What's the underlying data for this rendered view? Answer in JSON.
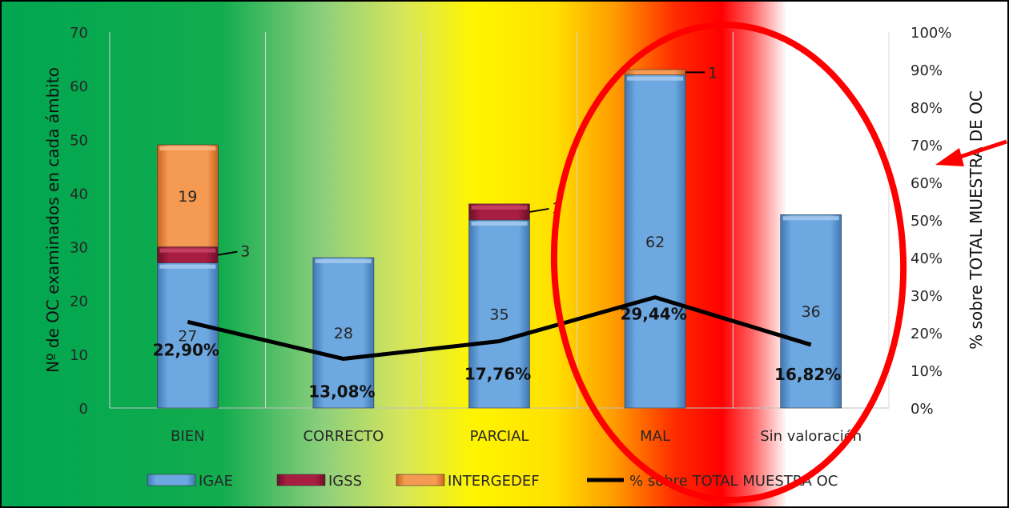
{
  "chart_data": {
    "type": "bar",
    "stacked": true,
    "categories": [
      "BIEN",
      "CORRECTO",
      "PARCIAL",
      "MAL",
      "Sin valoración"
    ],
    "series": [
      {
        "name": "IGAE",
        "values": [
          27,
          28,
          35,
          62,
          36
        ],
        "color": "#5B9BD5"
      },
      {
        "name": "IGSS",
        "values": [
          3,
          0,
          3,
          0,
          0
        ],
        "color": "#9E1C3D"
      },
      {
        "name": "INTERGEDEF",
        "values": [
          19,
          0,
          0,
          1,
          0
        ],
        "color": "#ED7D31"
      }
    ],
    "line_series": {
      "name": "% sobre TOTAL MUESTRA OC",
      "values": [
        22.9,
        13.08,
        17.76,
        29.44,
        16.82
      ],
      "labels": [
        "22,90%",
        "13,08%",
        "17,76%",
        "29,44%",
        "16,82%"
      ],
      "color": "#000000",
      "axis": "right"
    },
    "ylabel": "Nº de OC examinados en cada ámbito",
    "y2label": "% sobre TOTAL MUESTRA DE OC",
    "ylim": [
      0,
      70
    ],
    "y2lim": [
      0,
      100
    ],
    "yticks": [
      "0",
      "10",
      "20",
      "30",
      "40",
      "50",
      "60",
      "70"
    ],
    "y2ticks": [
      "0%",
      "10%",
      "20%",
      "30%",
      "40%",
      "50%",
      "60%",
      "70%",
      "80%",
      "90%",
      "100%"
    ],
    "bar_labels": {
      "IGAE": [
        "27",
        "28",
        "35",
        "62",
        "36"
      ],
      "IGSS": [
        "3",
        "",
        "3",
        "",
        ""
      ],
      "INTERGEDEF": [
        "19",
        "",
        "",
        "1",
        ""
      ]
    },
    "legend_position": "bottom",
    "grid": "vertical",
    "background": "gradient green-yellow-orange-red-white",
    "annotations": [
      "red ellipse around MAL",
      "red arrow pointing to right axis"
    ]
  }
}
